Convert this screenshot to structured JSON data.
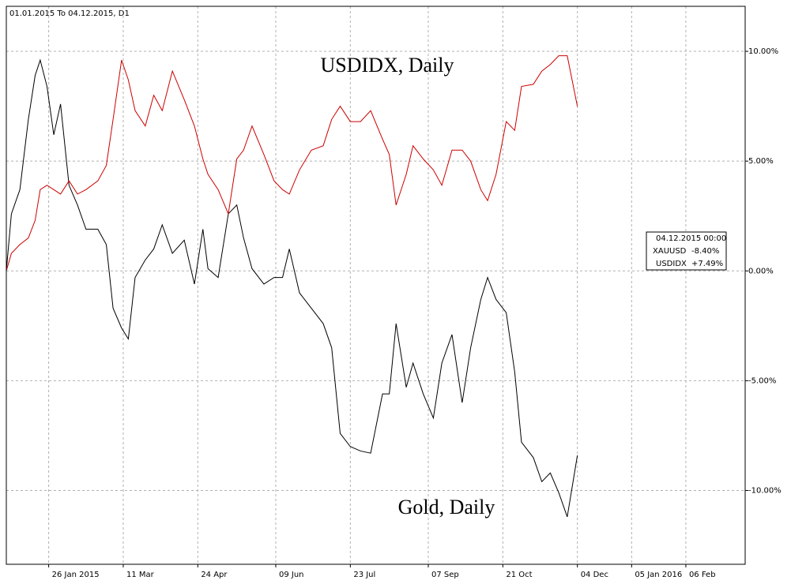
{
  "chart_data": {
    "type": "line",
    "title": "01.01.2015 To 04.12.2015, D1",
    "annotations": [
      "USDIDX, Daily",
      "Gold, Daily"
    ],
    "x": [
      "2015-01-01",
      "2015-01-04",
      "2015-01-09",
      "2015-01-14",
      "2015-01-18",
      "2015-01-21",
      "2015-01-25",
      "2015-01-29",
      "2015-02-02",
      "2015-02-07",
      "2015-02-12",
      "2015-02-17",
      "2015-02-24",
      "2015-03-01",
      "2015-03-05",
      "2015-03-10",
      "2015-03-14",
      "2015-03-18",
      "2015-03-24",
      "2015-03-29",
      "2015-04-03",
      "2015-04-09",
      "2015-04-16",
      "2015-04-22",
      "2015-04-27",
      "2015-04-30",
      "2015-05-06",
      "2015-05-12",
      "2015-05-17",
      "2015-05-21",
      "2015-05-26",
      "2015-06-02",
      "2015-06-08",
      "2015-06-13",
      "2015-06-17",
      "2015-06-23",
      "2015-06-30",
      "2015-07-07",
      "2015-07-12",
      "2015-07-17",
      "2015-07-23",
      "2015-07-29",
      "2015-08-04",
      "2015-08-11",
      "2015-08-15",
      "2015-08-19",
      "2015-08-25",
      "2015-08-29",
      "2015-09-04",
      "2015-09-10",
      "2015-09-15",
      "2015-09-21",
      "2015-09-27",
      "2015-10-02",
      "2015-10-08",
      "2015-10-12",
      "2015-10-17",
      "2015-10-23",
      "2015-10-28",
      "2015-11-01",
      "2015-11-08",
      "2015-11-13",
      "2015-11-18",
      "2015-11-23",
      "2015-11-28",
      "2015-12-04"
    ],
    "series": [
      {
        "name": "XAUUSD",
        "color": "#000000",
        "values": [
          0,
          2.6,
          3.7,
          6.9,
          8.9,
          9.6,
          8.4,
          6.2,
          7.6,
          3.9,
          3.0,
          1.9,
          1.9,
          1.2,
          -1.7,
          -2.6,
          -3.1,
          -0.3,
          0.5,
          1.0,
          2.1,
          0.8,
          1.4,
          -0.6,
          1.9,
          0.1,
          -0.3,
          2.6,
          3.0,
          1.5,
          0.1,
          -0.6,
          -0.3,
          -0.3,
          1.0,
          -1.0,
          -1.7,
          -2.4,
          -3.5,
          -7.4,
          -8.0,
          -8.2,
          -8.3,
          -5.6,
          -5.6,
          -2.4,
          -5.3,
          -4.2,
          -5.6,
          -6.7,
          -4.2,
          -2.9,
          -6.0,
          -3.5,
          -1.3,
          -0.3,
          -1.3,
          -1.9,
          -4.6,
          -7.8,
          -8.5,
          -9.6,
          -9.2,
          -10.1,
          -11.2,
          -8.4
        ]
      },
      {
        "name": "USDIDX",
        "color": "#cc0000",
        "values": [
          0,
          0.8,
          1.2,
          1.5,
          2.3,
          3.7,
          3.9,
          3.7,
          3.5,
          4.1,
          3.5,
          3.7,
          4.1,
          4.8,
          6.9,
          9.6,
          8.7,
          7.3,
          6.6,
          8.0,
          7.3,
          9.1,
          7.8,
          6.6,
          5.1,
          4.4,
          3.7,
          2.6,
          5.1,
          5.5,
          6.6,
          5.3,
          4.1,
          3.7,
          3.5,
          4.6,
          5.5,
          5.7,
          6.9,
          7.5,
          6.8,
          6.8,
          7.3,
          6.0,
          5.3,
          3.0,
          4.4,
          5.7,
          5.1,
          4.6,
          3.9,
          5.5,
          5.5,
          5.0,
          3.7,
          3.2,
          4.4,
          6.8,
          6.4,
          8.4,
          8.5,
          9.1,
          9.4,
          9.8,
          9.8,
          7.49
        ]
      }
    ],
    "info_box": {
      "date": "04.12.2015 00:00",
      "labels": [
        "-8.40%",
        "+7.49%"
      ]
    },
    "xlim": [
      "2015-01-01",
      "2016-03-12"
    ],
    "xticks": [
      {
        "value": "2015-01-26",
        "label": "26 Jan 2015"
      },
      {
        "value": "2015-03-11",
        "label": "11 Mar"
      },
      {
        "value": "2015-04-24",
        "label": "24 Apr"
      },
      {
        "value": "2015-06-09",
        "label": "09 Jun"
      },
      {
        "value": "2015-07-23",
        "label": "23 Jul"
      },
      {
        "value": "2015-09-07",
        "label": "07 Sep"
      },
      {
        "value": "2015-10-21",
        "label": "21 Oct"
      },
      {
        "value": "2015-12-04",
        "label": "04 Dec"
      },
      {
        "value": "2016-01-05",
        "label": "05 Jan 2016"
      },
      {
        "value": "2016-02-06",
        "label": "06 Feb"
      }
    ],
    "ylim": [
      -13.36,
      12.05
    ],
    "yticks": [
      {
        "value": 10,
        "label": "10.00%"
      },
      {
        "value": 5,
        "label": "5.00%"
      },
      {
        "value": 0,
        "label": "0.00%"
      },
      {
        "value": -5,
        "label": "-5.00%"
      },
      {
        "value": -10,
        "label": "-10.00%"
      }
    ],
    "grid": true
  }
}
